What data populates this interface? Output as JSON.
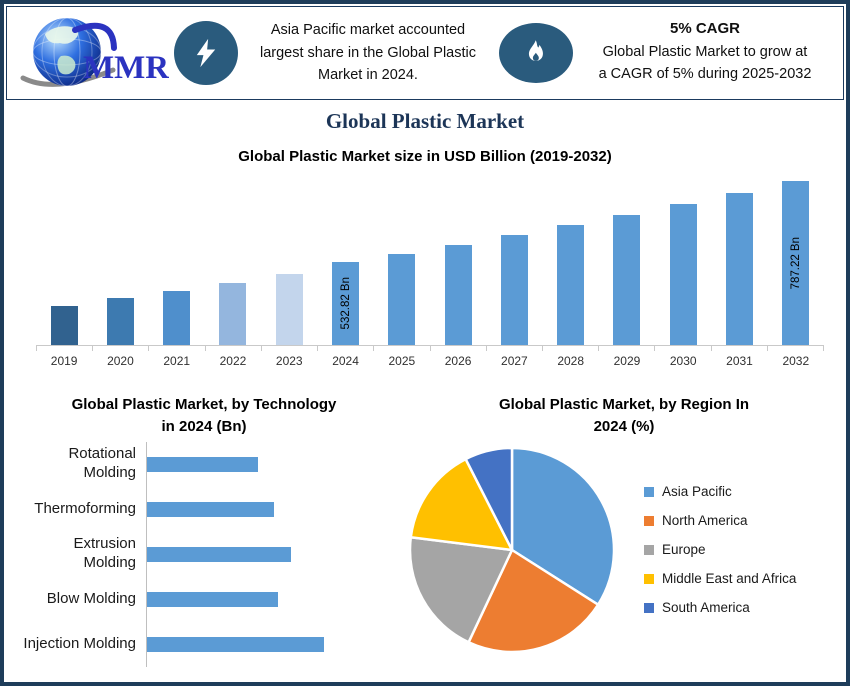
{
  "page_title": "Global Plastic Market",
  "header": {
    "logo": {
      "text": "MMR",
      "icon": "globe-logo"
    },
    "left": {
      "icon": "lightning-icon",
      "lines": [
        "Asia Pacific market accounted",
        "largest share in the Global Plastic",
        "Market in 2024."
      ]
    },
    "right": {
      "icon": "flame-icon",
      "title": "5% CAGR",
      "lines": [
        "Global Plastic Market to grow at",
        "a CAGR of 5% during 2025-2032"
      ]
    }
  },
  "colors": {
    "frame_border": "#1e3d5a",
    "icon_background": "#2a5b7d",
    "title_text": "#1c3557",
    "axis_line": "#c9c9c9",
    "default_bar": "#5b9bd5"
  },
  "chart_data": [
    {
      "type": "bar",
      "title": "Global Plastic Market size in USD Billion (2019-2032)",
      "categories": [
        "2019",
        "2020",
        "2021",
        "2022",
        "2023",
        "2024",
        "2025",
        "2026",
        "2027",
        "2028",
        "2029",
        "2030",
        "2031",
        "2032"
      ],
      "values": [
        395,
        420,
        442,
        467,
        495,
        532.82,
        559.46,
        587.43,
        616.8,
        647.64,
        680.03,
        714.03,
        749.73,
        787.22
      ],
      "values_note": "2024 and 2032 labeled on chart; other values estimated from bar heights (5% CAGR 2025-2032)",
      "bar_labels": {
        "2024": "532.82 Bn",
        "2032": "787.22 Bn"
      },
      "bar_colors": [
        "#31628f",
        "#3d7ab0",
        "#4f8fcc",
        "#94b6de",
        "#c3d5ec",
        "#5b9bd5",
        "#5b9bd5",
        "#5b9bd5",
        "#5b9bd5",
        "#5b9bd5",
        "#5b9bd5",
        "#5b9bd5",
        "#5b9bd5",
        "#5b9bd5"
      ],
      "ylabel": "",
      "xlabel": "",
      "ylim": [
        272,
        806
      ],
      "grid": false,
      "legend_position": "none"
    },
    {
      "type": "bar",
      "orientation": "horizontal",
      "title": "Global Plastic Market, by Technology in 2024 (Bn)",
      "title_lines": [
        "Global Plastic Market, by Technology",
        "in 2024 (Bn)"
      ],
      "categories": [
        "Rotational Molding",
        "Thermoforming",
        "Extrusion Molding",
        "Blow Molding",
        "Injection Molding"
      ],
      "category_lines": [
        [
          "Rotational",
          "Molding"
        ],
        [
          "Thermoforming"
        ],
        [
          "Extrusion",
          "Molding"
        ],
        [
          "Blow Molding"
        ],
        [
          "Injection Molding"
        ]
      ],
      "values": [
        111,
        127,
        144,
        131,
        177
      ],
      "values_note": "relative bar lengths (no value axis shown)",
      "bar_color": "#5b9bd5",
      "grid": false,
      "legend_position": "none"
    },
    {
      "type": "pie",
      "title": "Global Plastic Market, by Region In 2024 (%)",
      "title_lines": [
        "Global Plastic Market, by Region In",
        "2024 (%)"
      ],
      "slices": [
        {
          "label": "Asia Pacific",
          "value": 34,
          "color": "#5b9bd5"
        },
        {
          "label": "North America",
          "value": 23,
          "color": "#ed7d31"
        },
        {
          "label": "Europe",
          "value": 20,
          "color": "#a5a5a5"
        },
        {
          "label": "Middle East and Africa",
          "value": 15.5,
          "color": "#ffc000"
        },
        {
          "label": "South America",
          "value": 7.5,
          "color": "#4472c4"
        }
      ],
      "values_note": "percentages estimated from slice angles",
      "start_angle_deg": 0,
      "direction": "clockwise",
      "legend_position": "right"
    }
  ]
}
